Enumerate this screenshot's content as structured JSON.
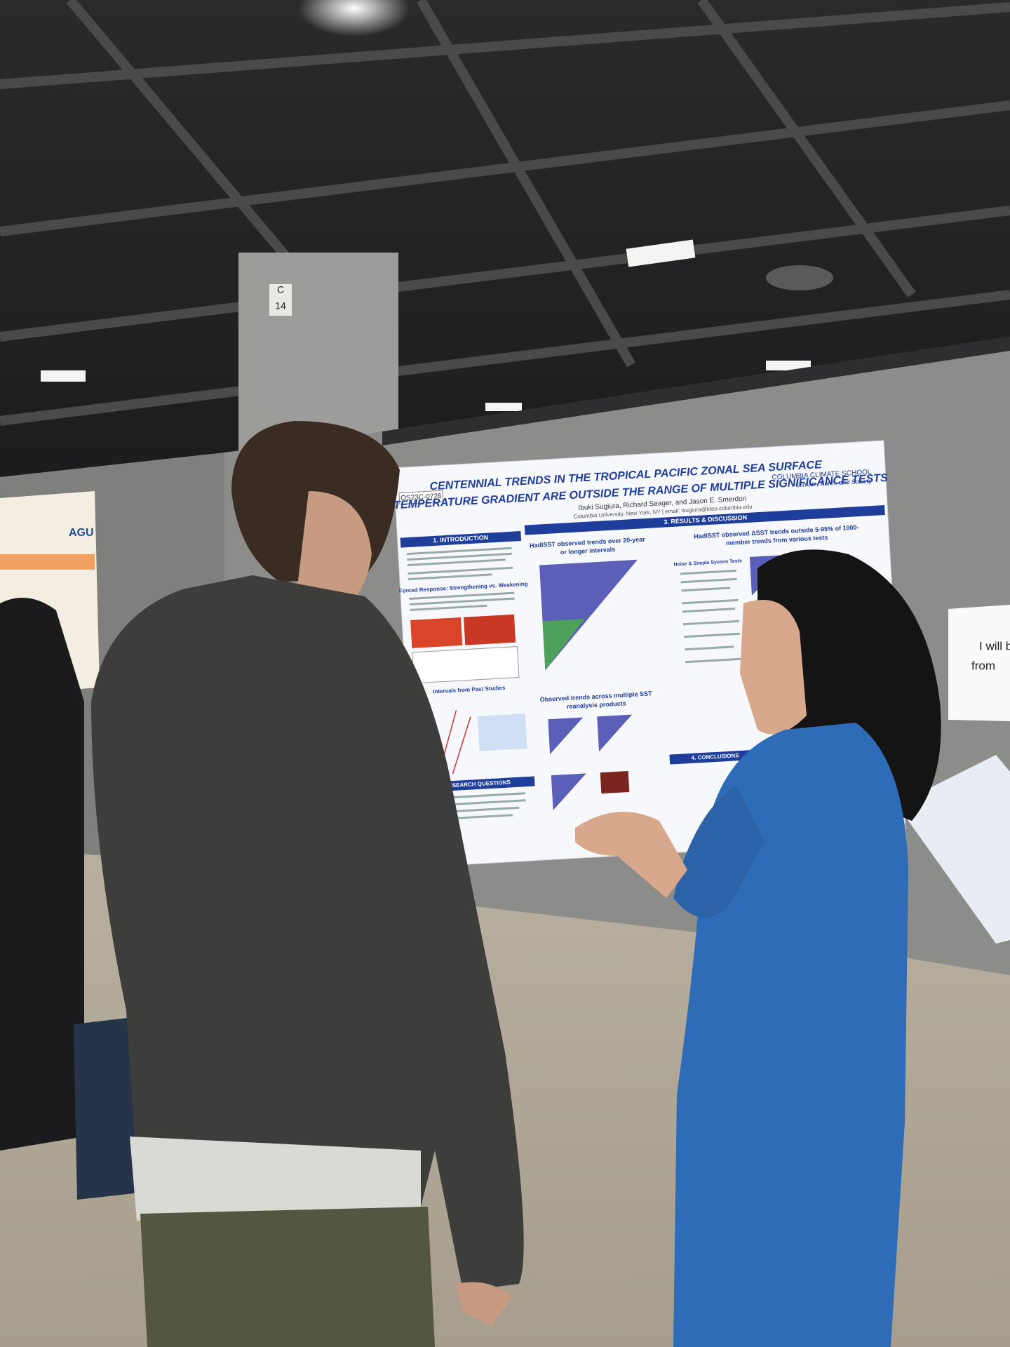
{
  "pillar": {
    "letter": "C",
    "number": "14"
  },
  "left_poster": {
    "logo": "AGU"
  },
  "poster": {
    "code": "OS23C-0726",
    "title_lines": [
      "CENTENNIAL TRENDS IN THE TROPICAL PACIFIC ZONAL SEA SURFACE",
      "TEMPERATURE GRADIENT ARE OUTSIDE THE RANGE OF MULTIPLE SIGNIFICANCE TESTS"
    ],
    "authors": "Ibuki Sugiura, Richard Seager, and Jason E. Smerdon",
    "affiliation": "Columbia University, New York, NY  |  email: isugiura@ldeo.columbia.edu",
    "institution": [
      "COLUMBIA CLIMATE SCHOOL",
      "Climate, Earth, and Society"
    ],
    "sections": {
      "intro": "1. INTRODUCTION",
      "forced": "Forced Response: Strengthening vs. Weakening",
      "intervals": "Intervals from Past Studies",
      "questions": "2. RESEARCH QUESTIONS",
      "results": "3. RESULTS & DISCUSSION",
      "hadisst": [
        "HadISST observed trends over 20-year",
        "or longer intervals"
      ],
      "members": [
        "HadISST observed ΔSST trends outside 5-95% of 1000-",
        "member trends from various tests"
      ],
      "noise": "Noise & Simple System Tests",
      "reanalysis": [
        "Observed trends across multiple SST",
        "reanalysis products"
      ],
      "conclusions": "4. CONCLUSIONS"
    }
  },
  "sign": {
    "lines": [
      "I will b",
      "from"
    ]
  }
}
